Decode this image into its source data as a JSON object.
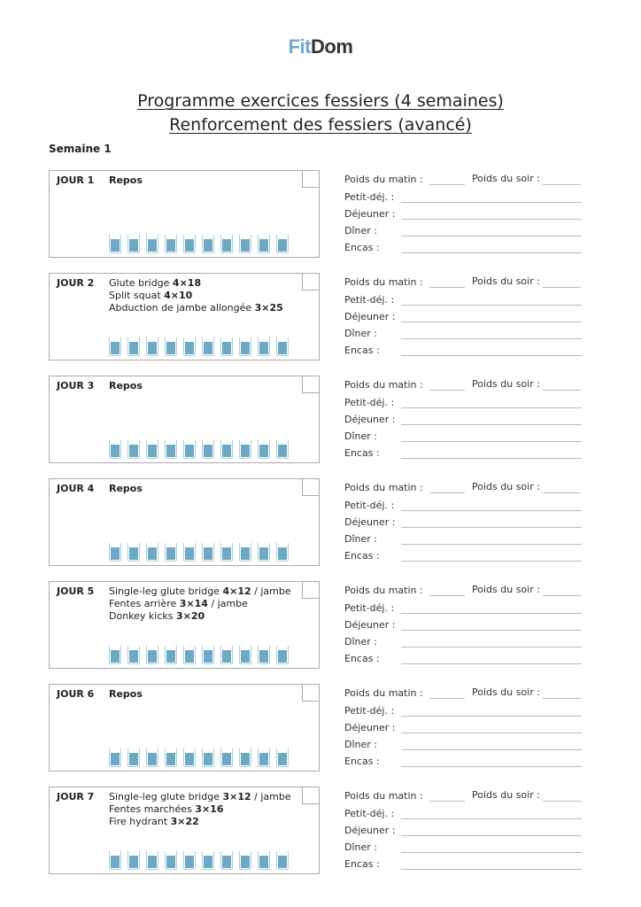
{
  "logo": {
    "part1": "Fit",
    "part2": "Dom"
  },
  "title_line1": "Programme exercices fessiers (4 semaines)",
  "title_line2": "Renforcement des fessiers (avancé)",
  "week": "Semaine 1",
  "meal_labels": {
    "morning_weight": "Poids du matin :",
    "evening_weight": "Poids du soir :",
    "breakfast": "Petit-déj. :",
    "lunch": "Déjeuner :",
    "dinner": "Dîner :",
    "snacks": "Encas :"
  },
  "water_glasses_per_day": 10,
  "colors": {
    "water": "#6ea8c3",
    "logo_accent": "#6fa9c9"
  },
  "days": [
    {
      "label": "JOUR 1",
      "exercises": [
        {
          "name": "Repos",
          "reps": "",
          "suffix": "",
          "rest": true
        }
      ]
    },
    {
      "label": "JOUR 2",
      "exercises": [
        {
          "name": "Glute bridge ",
          "reps": "4×18",
          "suffix": ""
        },
        {
          "name": "Split squat ",
          "reps": "4×10",
          "suffix": ""
        },
        {
          "name": "Abduction de jambe allongée ",
          "reps": "3×25",
          "suffix": ""
        }
      ]
    },
    {
      "label": "JOUR 3",
      "exercises": [
        {
          "name": "Repos",
          "reps": "",
          "suffix": "",
          "rest": true
        }
      ]
    },
    {
      "label": "JOUR 4",
      "exercises": [
        {
          "name": "Repos",
          "reps": "",
          "suffix": "",
          "rest": true
        }
      ]
    },
    {
      "label": "JOUR 5",
      "exercises": [
        {
          "name": "Single-leg glute bridge ",
          "reps": "4×12",
          "suffix": " / jambe"
        },
        {
          "name": "Fentes arrière ",
          "reps": "3×14",
          "suffix": " / jambe"
        },
        {
          "name": "Donkey kicks ",
          "reps": "3×20",
          "suffix": ""
        }
      ]
    },
    {
      "label": "JOUR 6",
      "exercises": [
        {
          "name": "Repos",
          "reps": "",
          "suffix": "",
          "rest": true
        }
      ]
    },
    {
      "label": "JOUR 7",
      "exercises": [
        {
          "name": "Single-leg glute bridge ",
          "reps": "3×12",
          "suffix": " / jambe"
        },
        {
          "name": "Fentes marchées ",
          "reps": "3×16",
          "suffix": ""
        },
        {
          "name": "Fire hydrant ",
          "reps": "3×22",
          "suffix": ""
        }
      ]
    }
  ]
}
